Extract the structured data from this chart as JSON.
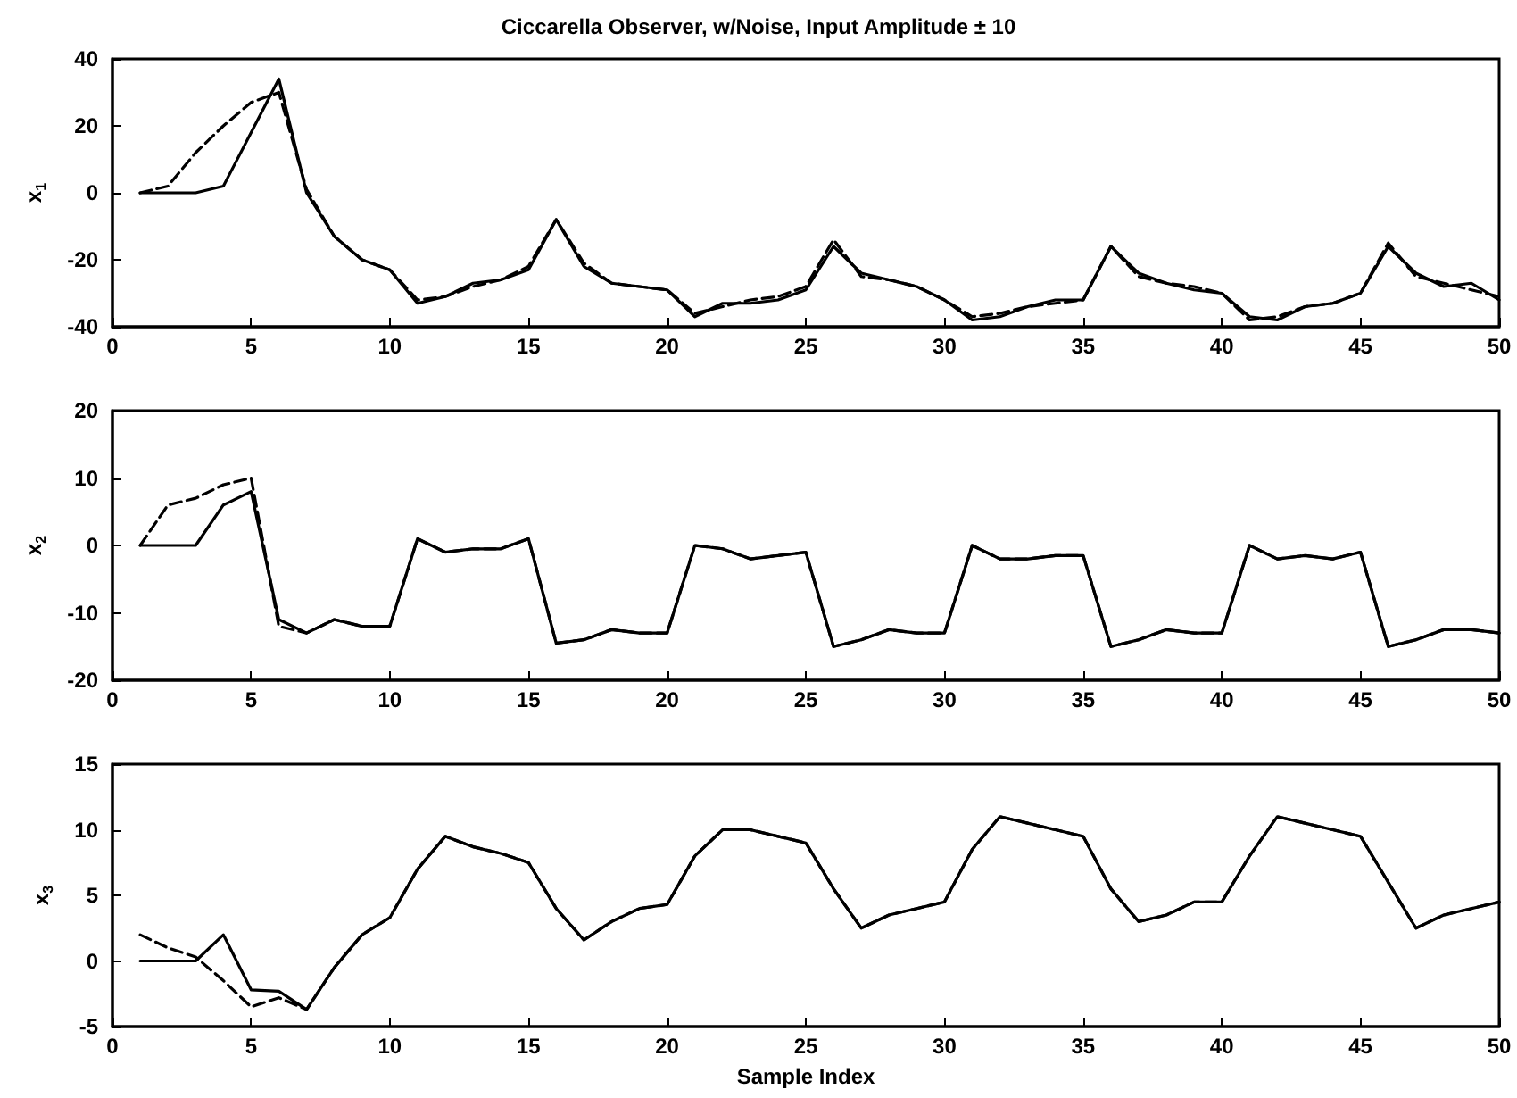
{
  "chart_data": [
    {
      "type": "line",
      "title": "Ciccarella Observer, w/Noise, Input Amplitude ± 10",
      "ylabel": "x$_{1}$",
      "marker": "none",
      "x": [
        1,
        2,
        3,
        4,
        5,
        6,
        7,
        8,
        9,
        10,
        11,
        12,
        13,
        14,
        15,
        16,
        17,
        18,
        19,
        20,
        21,
        22,
        23,
        24,
        25,
        26,
        27,
        28,
        29,
        30,
        31,
        32,
        33,
        34,
        35,
        36,
        37,
        38,
        39,
        40,
        41,
        42,
        43,
        44,
        45,
        46,
        47,
        48,
        49,
        50
      ],
      "xlim": [
        0,
        50
      ],
      "xticks": [
        0,
        5,
        10,
        15,
        20,
        25,
        30,
        35,
        40,
        45,
        50
      ],
      "ylim": [
        -40,
        40
      ],
      "yticks": [
        -40,
        -20,
        0,
        20,
        40
      ],
      "series": [
        {
          "color": "#000000",
          "line_style": "solid",
          "values": [
            0,
            0,
            0,
            2,
            18,
            34,
            0,
            -13,
            -20,
            -23,
            -33,
            -31,
            -27,
            -26,
            -23,
            -8,
            -22,
            -27,
            -28,
            -29,
            -37,
            -33,
            -33,
            -32,
            -29,
            -16,
            -24,
            -26,
            -28,
            -32,
            -38,
            -37,
            -34,
            -32,
            -32,
            -16,
            -24,
            -27,
            -29,
            -30,
            -37,
            -38,
            -34,
            -33,
            -30,
            -16,
            -24,
            -28,
            -27,
            -32
          ]
        },
        {
          "color": "#000000",
          "line_style": "dashed",
          "values": [
            0,
            2,
            12,
            20,
            27,
            30,
            1,
            -13,
            -20,
            -23,
            -32,
            -31,
            -28,
            -26,
            -22,
            -8,
            -21,
            -27,
            -28,
            -29,
            -36,
            -34,
            -32,
            -31,
            -28,
            -14,
            -25,
            -26,
            -28,
            -32,
            -37,
            -36,
            -34,
            -33,
            -32,
            -16,
            -25,
            -27,
            -28,
            -30,
            -38,
            -37,
            -34,
            -33,
            -30,
            -15,
            -25,
            -27,
            -29,
            -31
          ]
        }
      ]
    },
    {
      "type": "line",
      "ylabel": "x$_{2}$",
      "marker": "none",
      "x": [
        1,
        2,
        3,
        4,
        5,
        6,
        7,
        8,
        9,
        10,
        11,
        12,
        13,
        14,
        15,
        16,
        17,
        18,
        19,
        20,
        21,
        22,
        23,
        24,
        25,
        26,
        27,
        28,
        29,
        30,
        31,
        32,
        33,
        34,
        35,
        36,
        37,
        38,
        39,
        40,
        41,
        42,
        43,
        44,
        45,
        46,
        47,
        48,
        49,
        50
      ],
      "xlim": [
        0,
        50
      ],
      "xticks": [
        0,
        5,
        10,
        15,
        20,
        25,
        30,
        35,
        40,
        45,
        50
      ],
      "ylim": [
        -20,
        20
      ],
      "yticks": [
        -20,
        -10,
        0,
        10,
        20
      ],
      "series": [
        {
          "color": "#000000",
          "line_style": "solid",
          "values": [
            0,
            0,
            0,
            6,
            8,
            -11,
            -13,
            -11,
            -12,
            -12,
            1,
            -1,
            -0.5,
            -0.5,
            1,
            -14.5,
            -14,
            -12.5,
            -13,
            -13,
            0,
            -0.5,
            -2,
            -1.5,
            -1,
            -15,
            -14,
            -12.5,
            -13,
            -13,
            0,
            -2,
            -2,
            -1.5,
            -1.5,
            -15,
            -14,
            -12.5,
            -13,
            -13,
            0,
            -2,
            -1.5,
            -2,
            -1,
            -15,
            -14,
            -12.5,
            -12.5,
            -13
          ]
        },
        {
          "color": "#000000",
          "line_style": "dashed",
          "values": [
            0,
            6,
            7,
            9,
            10,
            -12,
            -13,
            -11,
            -12,
            -12,
            1,
            -1,
            -0.5,
            -0.5,
            1,
            -14.5,
            -14,
            -12.5,
            -13,
            -13,
            0,
            -0.5,
            -2,
            -1.5,
            -1,
            -15,
            -14,
            -12.5,
            -13,
            -13,
            0,
            -2,
            -2,
            -1.5,
            -1.5,
            -15,
            -14,
            -12.5,
            -13,
            -13,
            0,
            -2,
            -1.5,
            -2,
            -1,
            -15,
            -14,
            -12.5,
            -12.5,
            -13
          ]
        }
      ]
    },
    {
      "type": "line",
      "xlabel": "Sample Index",
      "ylabel": "x$_{3}$",
      "marker": "none",
      "x": [
        1,
        2,
        3,
        4,
        5,
        6,
        7,
        8,
        9,
        10,
        11,
        12,
        13,
        14,
        15,
        16,
        17,
        18,
        19,
        20,
        21,
        22,
        23,
        24,
        25,
        26,
        27,
        28,
        29,
        30,
        31,
        32,
        33,
        34,
        35,
        36,
        37,
        38,
        39,
        40,
        41,
        42,
        43,
        44,
        45,
        46,
        47,
        48,
        49,
        50
      ],
      "xlim": [
        0,
        50
      ],
      "xticks": [
        0,
        5,
        10,
        15,
        20,
        25,
        30,
        35,
        40,
        45,
        50
      ],
      "ylim": [
        -5,
        15
      ],
      "yticks": [
        -5,
        0,
        5,
        10,
        15
      ],
      "series": [
        {
          "color": "#000000",
          "line_style": "solid",
          "values": [
            0,
            0,
            0,
            2,
            -2.2,
            -2.3,
            -3.7,
            -0.5,
            2,
            3.3,
            7,
            9.5,
            8.7,
            8.2,
            7.5,
            4,
            1.6,
            3,
            4,
            4.3,
            8,
            10,
            10,
            9.5,
            9,
            5.5,
            2.5,
            3.5,
            4,
            4.5,
            8.5,
            11,
            10.5,
            10,
            9.5,
            5.5,
            3,
            3.5,
            4.5,
            4.5,
            8,
            11,
            10.5,
            10,
            9.5,
            6,
            2.5,
            3.5,
            4,
            4.5
          ]
        },
        {
          "color": "#000000",
          "line_style": "dashed",
          "values": [
            2,
            1,
            0.3,
            -1.5,
            -3.5,
            -2.8,
            -3.7,
            -0.5,
            2,
            3.3,
            7,
            9.5,
            8.7,
            8.2,
            7.5,
            4,
            1.6,
            3,
            4,
            4.3,
            8,
            10,
            10,
            9.5,
            9,
            5.5,
            2.5,
            3.5,
            4,
            4.5,
            8.5,
            11,
            10.5,
            10,
            9.5,
            5.5,
            3,
            3.5,
            4.5,
            4.5,
            8,
            11,
            10.5,
            10,
            9.5,
            6,
            2.5,
            3.5,
            4,
            4.5
          ]
        }
      ]
    }
  ]
}
